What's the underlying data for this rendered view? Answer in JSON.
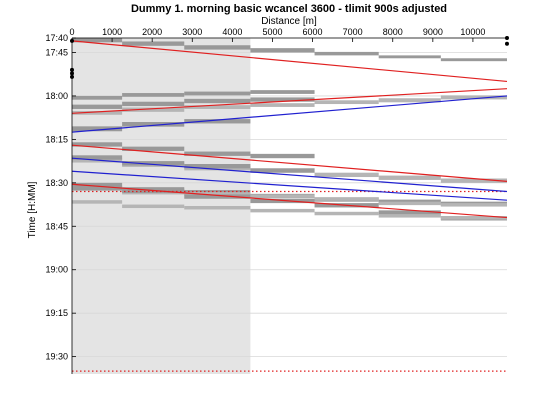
{
  "chart_data": {
    "type": "line",
    "title": "Dummy 1. morning basic wcancel 3600 - tlimit 900s adjusted",
    "xlabel": "Distance [m]",
    "ylabel": "Time [H:MM]",
    "xlim": [
      0,
      10850
    ],
    "ylim_minutes": [
      1060,
      1176
    ],
    "y_inverted": true,
    "x_axis_position": "top",
    "grid": true,
    "x_ticks": [
      0,
      1000,
      2000,
      3000,
      4000,
      5000,
      6000,
      7000,
      8000,
      9000,
      10000
    ],
    "y_ticks": [
      {
        "value": 1060,
        "label": "17:40"
      },
      {
        "value": 1065,
        "label": "17:45"
      },
      {
        "value": 1080,
        "label": "18:00"
      },
      {
        "value": 1095,
        "label": "18:15"
      },
      {
        "value": 1110,
        "label": "18:30"
      },
      {
        "value": 1125,
        "label": "18:45"
      },
      {
        "value": 1140,
        "label": "19:00"
      },
      {
        "value": 1155,
        "label": "19:15"
      },
      {
        "value": 1170,
        "label": "19:30"
      }
    ],
    "station_boundaries": [
      0,
      1250,
      2800,
      4450,
      6050,
      7650,
      9200,
      10850
    ],
    "shaded_region": {
      "x": [
        0,
        4450
      ],
      "color": "#e4e4e4"
    },
    "reference_lines": [
      {
        "y": 1113,
        "style": "dotted",
        "color": "#e02020"
      },
      {
        "y": 1175,
        "style": "dotted",
        "color": "#e02020"
      }
    ],
    "series": [
      {
        "color": "#e02020",
        "x": [
          0,
          10850
        ],
        "y": [
          1061.0,
          1075.0
        ]
      },
      {
        "color": "#e02020",
        "x": [
          0,
          10850
        ],
        "y": [
          1086.0,
          1077.5
        ]
      },
      {
        "color": "#2020d0",
        "x": [
          0,
          10850
        ],
        "y": [
          1092.5,
          1080.0
        ]
      },
      {
        "color": "#e02020",
        "x": [
          0,
          10850
        ],
        "y": [
          1097.0,
          1109.5
        ]
      },
      {
        "color": "#2020d0",
        "x": [
          0,
          10850
        ],
        "y": [
          1101.5,
          1113.0
        ]
      },
      {
        "color": "#2020d0",
        "x": [
          0,
          10850
        ],
        "y": [
          1106.0,
          1116.0
        ]
      },
      {
        "color": "#e02020",
        "x": [
          0,
          10850
        ],
        "y": [
          1110.5,
          1122.0
        ]
      }
    ],
    "bands": [
      {
        "shade": "dark",
        "segments": [
          [
            1060.0,
            1061.5
          ],
          [
            1061.2,
            1062.7
          ],
          [
            1062.5,
            1064.0
          ],
          [
            1063.5,
            1065.0
          ],
          [
            1064.8,
            1066.0
          ],
          [
            1066.0,
            1067.0
          ],
          [
            1067.0,
            1068.0
          ]
        ]
      },
      {
        "shade": "dark",
        "segments": [
          [
            1080.0,
            1081.3
          ],
          [
            1079.0,
            1080.3
          ],
          [
            1078.5,
            1079.8
          ],
          [
            1078.0,
            1079.3
          ]
        ]
      },
      {
        "shade": "dark",
        "segments": [
          [
            1083.0,
            1084.5
          ],
          [
            1082.0,
            1083.5
          ],
          [
            1081.0,
            1082.5
          ],
          [
            1080.5,
            1082.0
          ]
        ]
      },
      {
        "shade": "light",
        "segments": [
          [
            1085.2,
            1086.5
          ],
          [
            1084.0,
            1085.5
          ],
          [
            1083.2,
            1084.5
          ],
          [
            1082.5,
            1083.8
          ],
          [
            1081.5,
            1082.8
          ],
          [
            1080.8,
            1082.2
          ],
          [
            1079.8,
            1081.2
          ]
        ]
      },
      {
        "shade": "dark",
        "segments": [
          [
            1090.5,
            1092.2
          ],
          [
            1089.0,
            1090.6
          ],
          [
            1088.0,
            1089.5
          ]
        ]
      },
      {
        "shade": "dark",
        "segments": [
          [
            1096.0,
            1097.5
          ],
          [
            1097.5,
            1099.0
          ],
          [
            1099.2,
            1100.7
          ],
          [
            1100.0,
            1101.5
          ]
        ]
      },
      {
        "shade": "light",
        "segments": [
          [
            1101.5,
            1103.0
          ],
          [
            1103.0,
            1104.5
          ],
          [
            1104.2,
            1105.7
          ],
          [
            1105.0,
            1106.5
          ],
          [
            1106.5,
            1108.0
          ],
          [
            1107.5,
            1109.0
          ],
          [
            1108.5,
            1110.0
          ]
        ]
      },
      {
        "shade": "dark",
        "segments": [
          [
            1100.5,
            1102.0
          ],
          [
            1102.5,
            1104.0
          ],
          [
            1103.5,
            1105.0
          ],
          [
            1105.0,
            1106.5
          ]
        ]
      },
      {
        "shade": "dark",
        "segments": [
          [
            1110.0,
            1111.5
          ],
          [
            1111.5,
            1113.0
          ],
          [
            1112.5,
            1114.0
          ],
          [
            1113.8,
            1115.3
          ],
          [
            1115.0,
            1116.5
          ],
          [
            1115.8,
            1117.3
          ],
          [
            1116.5,
            1118.0
          ]
        ]
      },
      {
        "shade": "light",
        "segments": [
          [
            1111.5,
            1112.8
          ],
          [
            1112.8,
            1114.0
          ],
          [
            1113.2,
            1114.4
          ],
          [
            1114.0,
            1115.2
          ],
          [
            1115.0,
            1116.2
          ],
          [
            1116.5,
            1117.7
          ],
          [
            1117.0,
            1118.2
          ]
        ]
      },
      {
        "shade": "dark",
        "segments": [
          [
            1111.0,
            1112.5
          ],
          [
            1112.0,
            1113.5
          ],
          [
            1114.0,
            1115.5
          ],
          [
            1115.5,
            1117.0
          ],
          [
            1117.0,
            1118.5
          ],
          [
            1119.5,
            1121.0
          ],
          [
            1121.5,
            1123.0
          ]
        ]
      },
      {
        "shade": "light",
        "segments": [
          [
            1116.0,
            1117.2
          ],
          [
            1117.5,
            1118.7
          ],
          [
            1118.0,
            1119.2
          ],
          [
            1119.0,
            1120.2
          ],
          [
            1120.0,
            1121.2
          ],
          [
            1120.8,
            1122.0
          ],
          [
            1121.5,
            1122.7
          ]
        ]
      }
    ],
    "markers": [
      {
        "x": 0,
        "y": 1061.0
      },
      {
        "x": 0,
        "y": 1071.0
      },
      {
        "x": 0,
        "y": 1072.2
      },
      {
        "x": 0,
        "y": 1073.4
      },
      {
        "x": 10850,
        "y": 1060.0
      },
      {
        "x": 10850,
        "y": 1062.0
      }
    ]
  }
}
